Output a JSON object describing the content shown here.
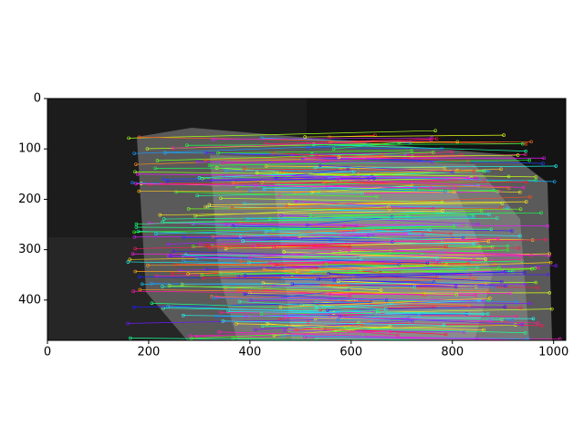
{
  "chart_data": {
    "type": "image",
    "xlim": [
      0,
      1024
    ],
    "ylim": [
      480,
      0
    ],
    "xticks": [
      0,
      200,
      400,
      600,
      800,
      1000
    ],
    "yticks": [
      0,
      100,
      200,
      300,
      400
    ]
  }
}
